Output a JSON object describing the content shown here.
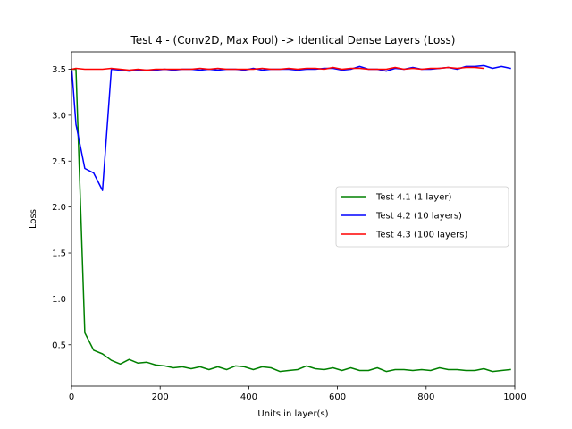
{
  "chart_data": {
    "type": "line",
    "title": "Test 4 - (Conv2D, Max Pool) -> Identical Dense Layers (Loss)",
    "xlabel": "Units in layer(s)",
    "ylabel": "Loss",
    "xlim": [
      0,
      1000
    ],
    "ylim": [
      0.05,
      3.69
    ],
    "x_ticks": [
      0,
      200,
      400,
      600,
      800,
      1000
    ],
    "y_ticks": [
      0.5,
      1.0,
      1.5,
      2.0,
      2.5,
      3.0,
      3.5
    ],
    "x_tick_labels": [
      "0",
      "200",
      "400",
      "600",
      "800",
      "1000"
    ],
    "y_tick_labels": [
      "0.5",
      "1.0",
      "1.5",
      "2.0",
      "2.5",
      "3.0",
      "3.5"
    ],
    "grid": false,
    "legend_position": "center-right",
    "series": [
      {
        "name": "Test 4.1 (1 layer)",
        "color": "#008000",
        "x": [
          1,
          10,
          30,
          50,
          70,
          90,
          110,
          130,
          150,
          170,
          190,
          210,
          230,
          250,
          270,
          290,
          310,
          330,
          350,
          370,
          390,
          410,
          430,
          450,
          470,
          490,
          510,
          530,
          550,
          570,
          590,
          610,
          630,
          650,
          670,
          690,
          710,
          730,
          750,
          770,
          790,
          810,
          830,
          850,
          870,
          890,
          910,
          930,
          950,
          970,
          990
        ],
        "y": [
          3.5,
          3.5,
          0.63,
          0.44,
          0.4,
          0.33,
          0.29,
          0.34,
          0.3,
          0.31,
          0.28,
          0.27,
          0.25,
          0.26,
          0.24,
          0.26,
          0.23,
          0.26,
          0.23,
          0.27,
          0.26,
          0.23,
          0.26,
          0.25,
          0.21,
          0.22,
          0.23,
          0.27,
          0.24,
          0.23,
          0.25,
          0.22,
          0.25,
          0.22,
          0.22,
          0.25,
          0.21,
          0.23,
          0.23,
          0.22,
          0.23,
          0.22,
          0.25,
          0.23,
          0.23,
          0.22,
          0.22,
          0.24,
          0.21,
          0.22,
          0.23
        ]
      },
      {
        "name": "Test 4.2 (10 layers)",
        "color": "#0000ff",
        "x": [
          1,
          10,
          30,
          50,
          70,
          90,
          110,
          130,
          150,
          170,
          190,
          210,
          230,
          250,
          270,
          290,
          310,
          330,
          350,
          370,
          390,
          410,
          430,
          450,
          470,
          490,
          510,
          530,
          550,
          570,
          590,
          610,
          630,
          650,
          670,
          690,
          710,
          730,
          750,
          770,
          790,
          810,
          830,
          850,
          870,
          890,
          910,
          930,
          950,
          970,
          990
        ],
        "y": [
          3.48,
          2.9,
          2.42,
          2.37,
          2.18,
          3.5,
          3.49,
          3.48,
          3.49,
          3.49,
          3.49,
          3.5,
          3.49,
          3.5,
          3.5,
          3.49,
          3.5,
          3.49,
          3.5,
          3.5,
          3.49,
          3.51,
          3.49,
          3.5,
          3.5,
          3.5,
          3.49,
          3.5,
          3.5,
          3.51,
          3.51,
          3.49,
          3.5,
          3.53,
          3.5,
          3.5,
          3.48,
          3.51,
          3.5,
          3.52,
          3.5,
          3.5,
          3.51,
          3.52,
          3.5,
          3.53,
          3.53,
          3.54,
          3.51,
          3.53,
          3.51
        ]
      },
      {
        "name": "Test 4.3 (100 layers)",
        "color": "#ff0000",
        "x": [
          1,
          10,
          30,
          50,
          70,
          90,
          110,
          130,
          150,
          170,
          190,
          210,
          230,
          250,
          270,
          290,
          310,
          330,
          350,
          370,
          390,
          410,
          430,
          450,
          470,
          490,
          510,
          530,
          550,
          570,
          590,
          610,
          630,
          650,
          670,
          690,
          710,
          730,
          750,
          770,
          790,
          810,
          830,
          850,
          870,
          890,
          910,
          930
        ],
        "y": [
          3.5,
          3.51,
          3.5,
          3.5,
          3.5,
          3.51,
          3.5,
          3.49,
          3.5,
          3.49,
          3.5,
          3.5,
          3.5,
          3.5,
          3.5,
          3.51,
          3.5,
          3.51,
          3.5,
          3.5,
          3.5,
          3.5,
          3.51,
          3.5,
          3.5,
          3.51,
          3.5,
          3.51,
          3.51,
          3.5,
          3.52,
          3.5,
          3.51,
          3.51,
          3.5,
          3.5,
          3.5,
          3.52,
          3.5,
          3.51,
          3.5,
          3.51,
          3.51,
          3.52,
          3.51,
          3.52,
          3.52,
          3.51
        ]
      }
    ]
  }
}
